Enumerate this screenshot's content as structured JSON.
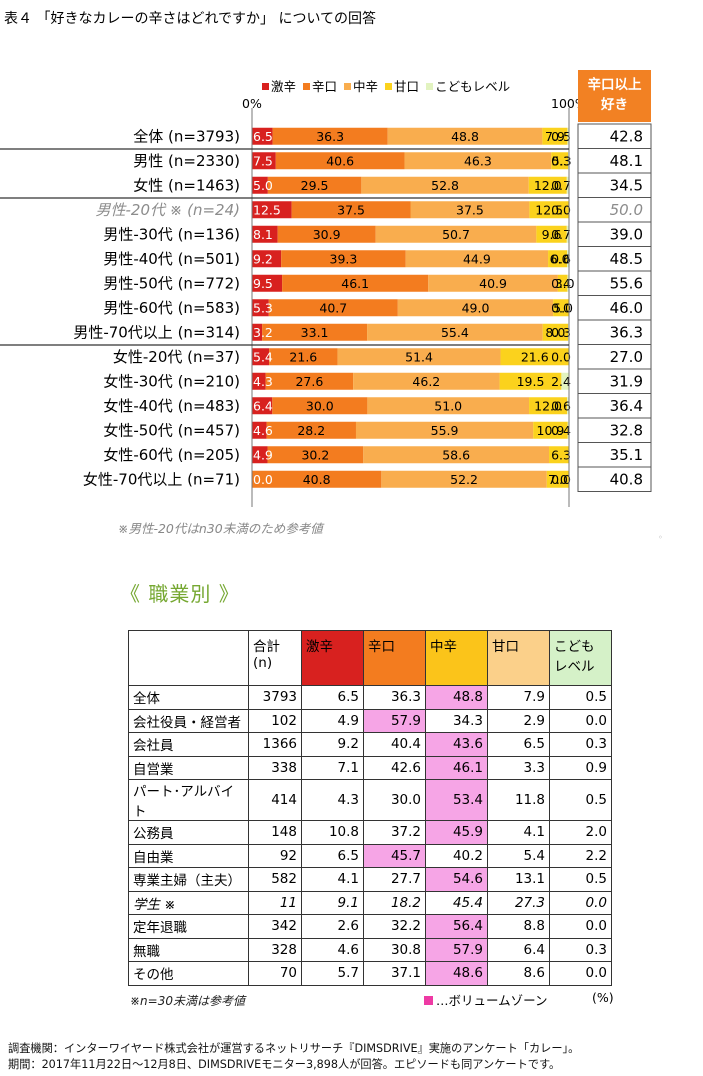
{
  "title": "表４ 「好きなカレーの辛さはどれですか」 についての回答",
  "colors": {
    "gekikara": "#d8211f",
    "karakuchi": "#f37c1f",
    "chukara": "#f9ad4e",
    "amakuchi": "#fbd21d",
    "kodomo": "#e2f3c0",
    "highlight": "#f6a5e6",
    "volume_marker": "#ee3aa4"
  },
  "legend": [
    {
      "label": "激辛",
      "color": "#d8211f"
    },
    {
      "label": "辛口",
      "color": "#f37c1f"
    },
    {
      "label": "中辛",
      "color": "#f9ad4e"
    },
    {
      "label": "甘口",
      "color": "#fbd21d"
    },
    {
      "label": "こどもレベル",
      "color": "#e2f3c0"
    }
  ],
  "axis": {
    "min_label": "0%",
    "max_label": "100%"
  },
  "side_header": {
    "line1": "辛口以上",
    "line2": "好き"
  },
  "chart_data": {
    "type": "bar",
    "orientation": "horizontal-stacked-100",
    "title": "表４ 「好きなカレーの辛さはどれですか」 についての回答",
    "series_names": [
      "激辛",
      "辛口",
      "中辛",
      "甘口",
      "こどもレベル"
    ],
    "xlim": [
      0,
      100
    ],
    "rows": [
      {
        "label": "全体 (n=3793)",
        "values": [
          6.5,
          36.3,
          48.8,
          7.9,
          0.5
        ],
        "value_labels": [
          "6.5",
          "36.3",
          "48.8",
          "7.9",
          "0.5"
        ],
        "side": "42.8"
      },
      {
        "label": "男性 (n=2330)",
        "values": [
          7.5,
          40.6,
          46.3,
          5.3,
          0.3
        ],
        "value_labels": [
          "7.5",
          "40.6",
          "46.3",
          "5.3",
          "0.3"
        ],
        "side": "48.1"
      },
      {
        "label": "女性 (n=1463)",
        "values": [
          5.0,
          29.5,
          52.8,
          12.0,
          0.7
        ],
        "value_labels": [
          "5.0",
          "29.5",
          "52.8",
          "12.0",
          "0.7"
        ],
        "side": "34.5"
      },
      {
        "label": "男性-20代 ※ (n=24)",
        "values": [
          12.5,
          37.5,
          37.5,
          12.5,
          0.0
        ],
        "value_labels": [
          "12.5",
          "37.5",
          "37.5",
          "12.5",
          "0.0"
        ],
        "side": "50.0",
        "italic": true
      },
      {
        "label": "男性-30代 (n=136)",
        "values": [
          8.1,
          30.9,
          50.7,
          9.6,
          0.7
        ],
        "value_labels": [
          "8.1",
          "30.9",
          "50.7",
          "9.6",
          "0.7"
        ],
        "side": "39.0"
      },
      {
        "label": "男性-40代 (n=501)",
        "values": [
          9.2,
          39.3,
          44.9,
          6.0,
          0.6
        ],
        "value_labels": [
          "9.2",
          "39.3",
          "44.9",
          "6.0",
          "0.6"
        ],
        "side": "48.5"
      },
      {
        "label": "男性-50代 (n=772)",
        "values": [
          9.5,
          46.1,
          40.9,
          3.0,
          0.4
        ],
        "value_labels": [
          "9.5",
          "46.1",
          "40.9",
          "3.0",
          "0.4"
        ],
        "side": "55.6"
      },
      {
        "label": "男性-60代 (n=583)",
        "values": [
          5.3,
          40.7,
          49.0,
          5.0,
          0.0
        ],
        "value_labels": [
          "5.3",
          "40.7",
          "49.0",
          "5.0",
          "0.0"
        ],
        "side": "46.0"
      },
      {
        "label": "男性-70代以上 (n=314)",
        "values": [
          3.2,
          33.1,
          55.4,
          8.0,
          0.3
        ],
        "value_labels": [
          "3.2",
          "33.1",
          "55.4",
          "8.0",
          "0.3"
        ],
        "side": "36.3"
      },
      {
        "label": "女性-20代 (n=37)",
        "values": [
          5.4,
          21.6,
          51.4,
          21.6,
          0.0
        ],
        "value_labels": [
          "5.4",
          "21.6",
          "51.4",
          "21.6",
          "0.0"
        ],
        "side": "27.0"
      },
      {
        "label": "女性-30代 (n=210)",
        "values": [
          4.3,
          27.6,
          46.2,
          19.5,
          2.4
        ],
        "value_labels": [
          "4.3",
          "27.6",
          "46.2",
          "19.5",
          "2.4"
        ],
        "side": "31.9"
      },
      {
        "label": "女性-40代 (n=483)",
        "values": [
          6.4,
          30.0,
          51.0,
          12.0,
          0.6
        ],
        "value_labels": [
          "6.4",
          "30.0",
          "51.0",
          "12.0",
          "0.6"
        ],
        "side": "36.4"
      },
      {
        "label": "女性-50代 (n=457)",
        "values": [
          4.6,
          28.2,
          55.9,
          10.9,
          0.4
        ],
        "value_labels": [
          "4.6",
          "28.2",
          "55.9",
          "10.9",
          "0.4"
        ],
        "side": "32.8"
      },
      {
        "label": "女性-60代 (n=205)",
        "values": [
          4.9,
          30.2,
          58.6,
          6.3,
          0.0
        ],
        "value_labels": [
          "4.9",
          "30.2",
          "58.6",
          "6.3",
          ""
        ],
        "side": "35.1"
      },
      {
        "label": "女性-70代以上 (n=71)",
        "values": [
          0.0,
          40.8,
          52.2,
          7.0,
          0.0
        ],
        "value_labels": [
          "0.0",
          "40.8",
          "52.2",
          "7.0",
          "0.0"
        ],
        "side": "40.8"
      }
    ]
  },
  "note1": "※男性-20代はn30未満のため参考値",
  "section_title": "《 職業別 》",
  "table": {
    "headers": [
      "",
      "合計\n(n)",
      "激辛",
      "辛口",
      "中辛",
      "甘口",
      "こども\nレベル"
    ],
    "header_colors": [
      "#ffffff",
      "#ffffff",
      "#d8211f",
      "#f37c1f",
      "#fbc41a",
      "#fbd08a",
      "#d5f1c8"
    ],
    "rows": [
      {
        "cells": [
          "全体",
          "3793",
          "6.5",
          "36.3",
          "48.8",
          "7.9",
          "0.5"
        ],
        "hl": 4
      },
      {
        "cells": [
          "会社役員・経営者",
          "102",
          "4.9",
          "57.9",
          "34.3",
          "2.9",
          "0.0"
        ],
        "hl": 3
      },
      {
        "cells": [
          "会社員",
          "1366",
          "9.2",
          "40.4",
          "43.6",
          "6.5",
          "0.3"
        ],
        "hl": 4
      },
      {
        "cells": [
          "自営業",
          "338",
          "7.1",
          "42.6",
          "46.1",
          "3.3",
          "0.9"
        ],
        "hl": 4
      },
      {
        "cells": [
          "パート･アルバイト",
          "414",
          "4.3",
          "30.0",
          "53.4",
          "11.8",
          "0.5"
        ],
        "hl": 4
      },
      {
        "cells": [
          "公務員",
          "148",
          "10.8",
          "37.2",
          "45.9",
          "4.1",
          "2.0"
        ],
        "hl": 4
      },
      {
        "cells": [
          "自由業",
          "92",
          "6.5",
          "45.7",
          "40.2",
          "5.4",
          "2.2"
        ],
        "hl": 3
      },
      {
        "cells": [
          "専業主婦（主夫）",
          "582",
          "4.1",
          "27.7",
          "54.6",
          "13.1",
          "0.5"
        ],
        "hl": 4
      },
      {
        "cells": [
          "学生 ※",
          "11",
          "9.1",
          "18.2",
          "45.4",
          "27.3",
          "0.0"
        ],
        "hl": -1,
        "italic": true
      },
      {
        "cells": [
          "定年退職",
          "342",
          "2.6",
          "32.2",
          "56.4",
          "8.8",
          "0.0"
        ],
        "hl": 4
      },
      {
        "cells": [
          "無職",
          "328",
          "4.6",
          "30.8",
          "57.9",
          "6.4",
          "0.3"
        ],
        "hl": 4
      },
      {
        "cells": [
          "その他",
          "70",
          "5.7",
          "37.1",
          "48.6",
          "8.6",
          "0.0"
        ],
        "hl": 4
      }
    ]
  },
  "note2": "※n=30未満は参考値",
  "volume_zone": "…ボリュームゾーン",
  "pct_unit": "(%)",
  "footer": {
    "line1": "調査機関：インターワイヤード株式会社が運営するネットリサーチ『DIMSDRIVE』実施のアンケート「カレー」。",
    "line2": "期間：2017年11月22日～12月8日、DIMSDRIVEモニター3,898人が回答。エピソードも同アンケートです。"
  }
}
